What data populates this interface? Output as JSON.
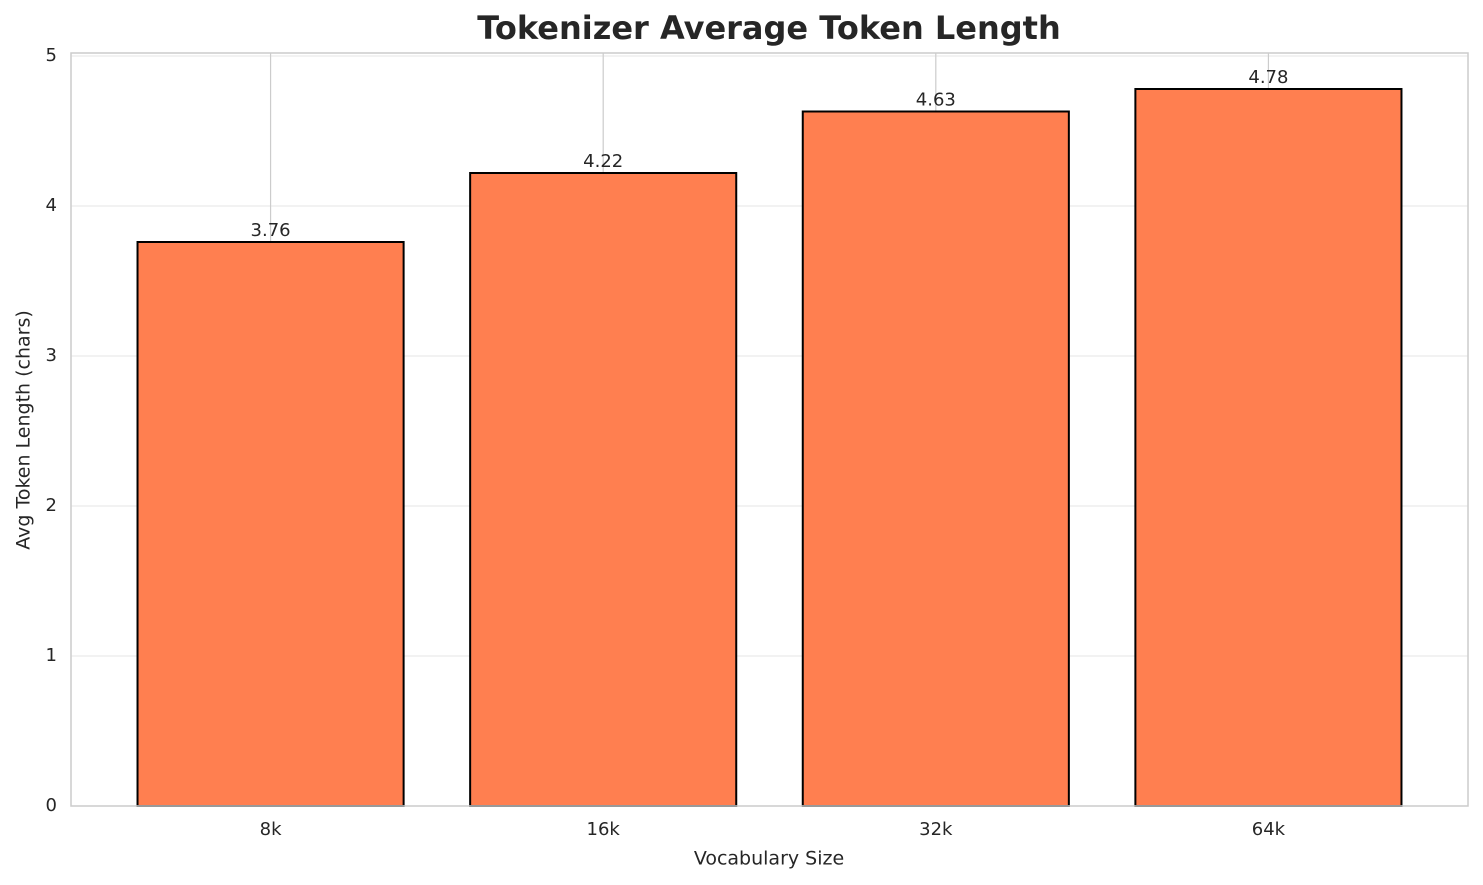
{
  "chart_data": {
    "type": "bar",
    "title": "Tokenizer Average Token Length",
    "x_label": "Vocabulary Size",
    "y_label": "Avg Token Length (chars)",
    "categories": [
      "8k",
      "16k",
      "32k",
      "64k"
    ],
    "values": [
      3.76,
      4.22,
      4.63,
      4.78
    ],
    "color": "#ff7f50",
    "edge_color": "#000000",
    "ylim": [
      0,
      5.02
    ],
    "yticks": [
      0,
      1,
      2,
      3,
      4,
      5
    ],
    "grid": true
  }
}
